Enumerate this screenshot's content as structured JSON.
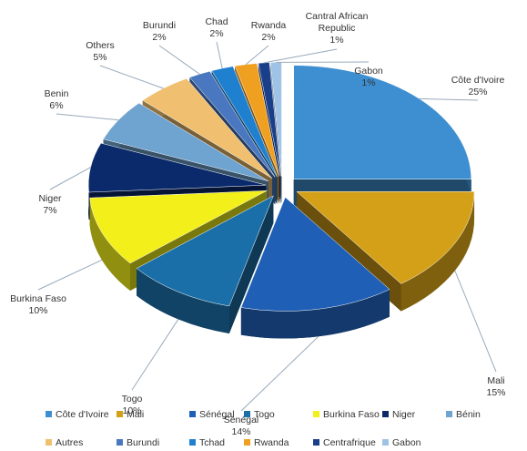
{
  "chart_data": {
    "type": "pie",
    "categories": [
      "Côte d'Ivoire",
      "Mali",
      "Sénégal",
      "Togo",
      "Burkina Faso",
      "Niger",
      "Bénin",
      "Autres",
      "Burundi",
      "Tchad",
      "Rwanda",
      "Centrafrique",
      "Gabon"
    ],
    "labels": [
      "Côte d'Ivoire",
      "Mali",
      "Sénégal",
      "Togo",
      "Burkina Faso",
      "Niger",
      "Benin",
      "Others",
      "Burundi",
      "Chad",
      "Rwanda",
      "Cantral African Republic",
      "Gabon"
    ],
    "values": [
      25,
      15,
      14,
      10,
      10,
      7,
      6,
      5,
      2,
      2,
      2,
      1,
      1
    ],
    "value_labels": [
      "25%",
      "15%",
      "14%",
      "10%",
      "10%",
      "7%",
      "6%",
      "5%",
      "2%",
      "2%",
      "2%",
      "1%",
      "1%"
    ],
    "colors": [
      "#3d8fd1",
      "#d4a017",
      "#1f5fb5",
      "#1b6fa8",
      "#f2ef1a",
      "#0b2a6b",
      "#6fa3d0",
      "#f0c070",
      "#4a78c0",
      "#2080d0",
      "#f0a020",
      "#1a3f8a",
      "#9ec3e6"
    ]
  }
}
